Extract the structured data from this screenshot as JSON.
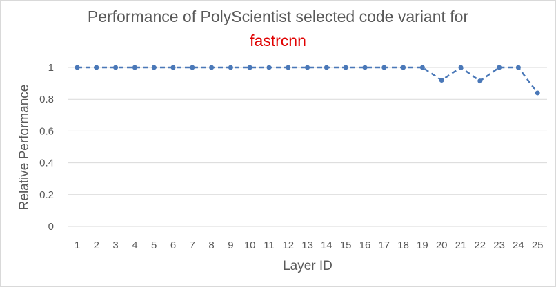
{
  "chart_data": {
    "type": "line",
    "title": "Performance of PolyScientist selected code variant for",
    "subtitle": "fastrcnn",
    "xlabel": "Layer ID",
    "ylabel": "Relative Performance",
    "x": [
      1,
      2,
      3,
      4,
      5,
      6,
      7,
      8,
      9,
      10,
      11,
      12,
      13,
      14,
      15,
      16,
      17,
      18,
      19,
      20,
      21,
      22,
      23,
      24,
      25
    ],
    "x_tick_labels": [
      "1",
      "2",
      "3",
      "4",
      "5",
      "6",
      "7",
      "8",
      "9",
      "10",
      "11",
      "12",
      "13",
      "14",
      "15",
      "16",
      "17",
      "18",
      "19",
      "20",
      "21",
      "22",
      "23",
      "24",
      "25"
    ],
    "y_tick_labels": [
      "0",
      "0.2",
      "0.4",
      "0.6",
      "0.8",
      "1"
    ],
    "series": [
      {
        "values": [
          1,
          1,
          1,
          1,
          1,
          1,
          1,
          1,
          1,
          1,
          1,
          1,
          1,
          1,
          1,
          1,
          1,
          1,
          1,
          0.92,
          1,
          0.915,
          1,
          1,
          0.84
        ]
      }
    ],
    "ylim": [
      0,
      1
    ],
    "grid": "horizontal",
    "line_style": "dashed",
    "colors": {
      "series": "#4a78b8",
      "grid": "#d9d9d9",
      "text": "#595959",
      "subtitle": "#e00000"
    }
  }
}
